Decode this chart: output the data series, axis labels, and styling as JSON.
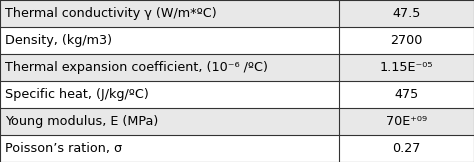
{
  "rows": [
    [
      "Thermal conductivity γ (W/m*ºC)",
      "47.5"
    ],
    [
      "Density, (kg/m3)",
      "2700"
    ],
    [
      "Thermal expansion coefficient, (10⁻⁶ /ºC)",
      "1.15E⁻⁰⁵"
    ],
    [
      "Specific heat, (J/kg/ºC)",
      "475"
    ],
    [
      "Young modulus, E (MPa)",
      "70E⁺⁰⁹"
    ],
    [
      "Poisson’s ration, σ",
      "0.27"
    ]
  ],
  "col_split": 0.715,
  "row_colors": [
    "#e8e8e8",
    "#ffffff"
  ],
  "font_size": 9.2,
  "border_color": "#333333",
  "text_color": "black",
  "fig_width": 4.74,
  "fig_height": 1.62,
  "line_width": 0.8
}
